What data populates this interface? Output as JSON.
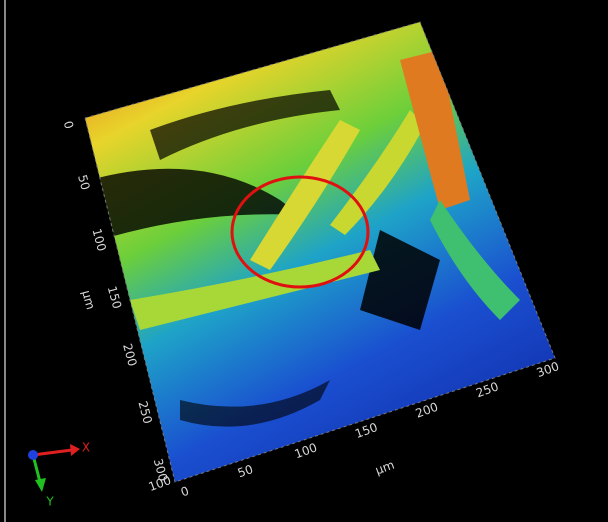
{
  "left_axis": {
    "ticks": [
      0,
      50,
      100,
      150,
      200,
      250,
      300
    ],
    "unit": "µm"
  },
  "bottom_axis": {
    "ticks": [
      0,
      50,
      100,
      150,
      200,
      250,
      300
    ],
    "unit": "µm",
    "extra": 100
  },
  "gizmo": {
    "x": "X",
    "y": "Y"
  }
}
